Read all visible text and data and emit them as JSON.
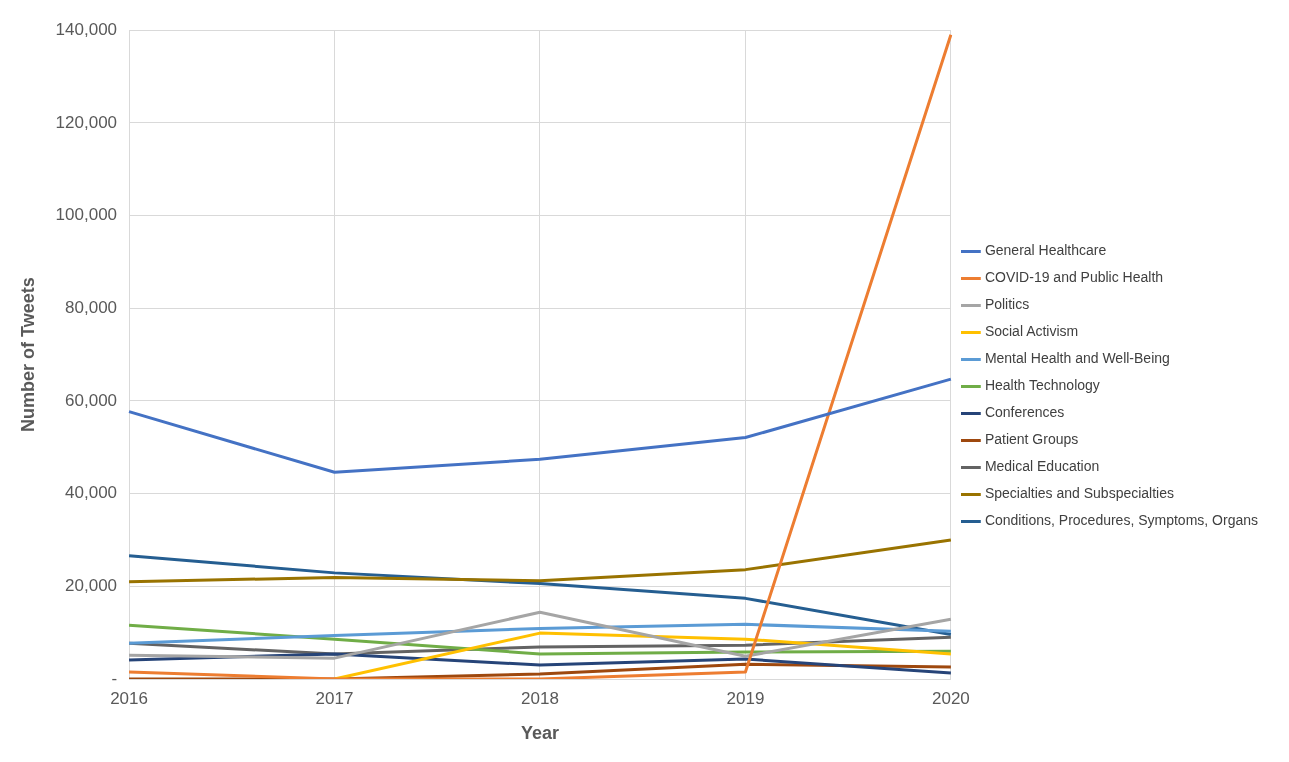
{
  "chart_data": {
    "type": "line",
    "xlabel": "Year",
    "ylabel": "Number of Tweets",
    "categories": [
      "2016",
      "2017",
      "2018",
      "2019",
      "2020"
    ],
    "series": [
      {
        "name": "General Healthcare",
        "color": "#4472c4",
        "values": [
          57700,
          44600,
          47400,
          52100,
          64700
        ]
      },
      {
        "name": "COVID-19 and Public Health",
        "color": "#ed7d31",
        "values": [
          1500,
          0,
          0,
          1500,
          139000
        ]
      },
      {
        "name": "Politics",
        "color": "#a5a5a5",
        "values": [
          5100,
          4500,
          14400,
          4900,
          12900
        ]
      },
      {
        "name": "Social Activism",
        "color": "#ffc000",
        "values": [
          null,
          0,
          9900,
          8600,
          5400
        ]
      },
      {
        "name": "Mental Health and Well-Being",
        "color": "#5b9bd5",
        "values": [
          7700,
          9400,
          10900,
          11800,
          10300
        ]
      },
      {
        "name": "Health Technology",
        "color": "#70ad47",
        "values": [
          11600,
          8600,
          5400,
          5800,
          6000
        ]
      },
      {
        "name": "Conferences",
        "color": "#264478",
        "values": [
          4100,
          5400,
          3000,
          4300,
          1300
        ]
      },
      {
        "name": "Patient Groups",
        "color": "#9e480e",
        "values": [
          0,
          0,
          1100,
          3200,
          2600
        ]
      },
      {
        "name": "Medical Education",
        "color": "#636363",
        "values": [
          7700,
          5400,
          6900,
          7300,
          9000
        ]
      },
      {
        "name": "Specialties and Subspecialties",
        "color": "#997300",
        "values": [
          21000,
          21900,
          21200,
          23600,
          30000
        ]
      },
      {
        "name": "Conditions, Procedures, Symptoms, Organs",
        "color": "#255e91",
        "values": [
          26600,
          22900,
          20600,
          17400,
          9600
        ]
      }
    ],
    "ylim": [
      0,
      140000
    ],
    "yticks": [
      {
        "value": 0,
        "label": "-"
      },
      {
        "value": 20000,
        "label": "20,000"
      },
      {
        "value": 40000,
        "label": "40,000"
      },
      {
        "value": 60000,
        "label": "60,000"
      },
      {
        "value": 80000,
        "label": "80,000"
      },
      {
        "value": 100000,
        "label": "100,000"
      },
      {
        "value": 120000,
        "label": "120,000"
      },
      {
        "value": 140000,
        "label": "140,000"
      }
    ],
    "grid": true,
    "legend": "right",
    "marker": "none",
    "line_style": "solid"
  }
}
